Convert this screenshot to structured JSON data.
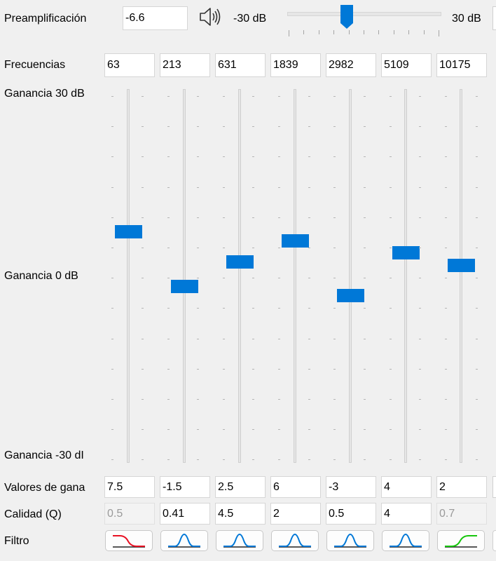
{
  "preamp": {
    "label": "Preamplificación",
    "value": "-6.6",
    "min_label": "-30 dB",
    "max_label": "30 dB",
    "level": -6.6,
    "range": [
      -30,
      30
    ]
  },
  "frequencies": {
    "label": "Frecuencias",
    "values": [
      "63",
      "213",
      "631",
      "1839",
      "2982",
      "5109",
      "10175"
    ]
  },
  "gain_axis": {
    "top_label": "Ganancia 30 dB",
    "mid_label": "Ganancia 0 dB",
    "bottom_label": "Ganancia -30 dI",
    "range": [
      -30,
      30
    ]
  },
  "band_levels": [
    7.5,
    -1.5,
    2.5,
    6,
    -3,
    4,
    2
  ],
  "gains": {
    "label": "Valores de gana",
    "values": [
      "7.5",
      "-1.5",
      "2.5",
      "6",
      "-3",
      "4",
      "2"
    ]
  },
  "quality": {
    "label": "Calidad (Q)",
    "values": [
      "0.5",
      "0.41",
      "4.5",
      "2",
      "0.5",
      "4",
      "0.7"
    ],
    "disabled": [
      true,
      false,
      false,
      false,
      false,
      false,
      true
    ]
  },
  "filter": {
    "label": "Filtro",
    "types": [
      "low-shelf-icon",
      "peak-icon",
      "peak-icon",
      "peak-icon",
      "peak-icon",
      "peak-icon",
      "high-shelf-icon"
    ]
  },
  "colors": {
    "accent": "#0078d7",
    "low_shelf": "#e81123",
    "high_shelf": "#16c60c",
    "peak": "#0078d7"
  }
}
